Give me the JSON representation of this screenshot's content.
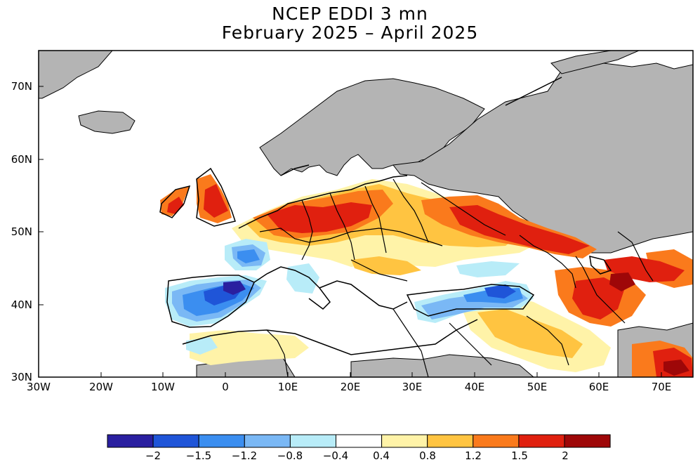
{
  "title": {
    "line1": "NCEP EDDI 3 mn",
    "line2": "February 2025 – April 2025"
  },
  "map": {
    "lon_ticks": [
      "30W",
      "20W",
      "10W",
      "0",
      "10E",
      "20E",
      "30E",
      "40E",
      "50E",
      "60E",
      "70E"
    ],
    "lat_ticks": [
      "70N",
      "60N",
      "50N",
      "40N",
      "30N"
    ],
    "missing_color": "#b4b4b4",
    "ocean_color": "#ffffff"
  },
  "colorbar": {
    "labels": [
      "−2",
      "−1.5",
      "−1.2",
      "−0.8",
      "−0.4",
      "0.4",
      "0.8",
      "1.2",
      "1.5",
      "2"
    ],
    "colors": [
      "#2a1fa0",
      "#1f55d8",
      "#3b8ef0",
      "#7ab8f5",
      "#b8ecf8",
      "#ffffff",
      "#fff3a8",
      "#ffc441",
      "#fa7a1c",
      "#e0200f",
      "#9e0708"
    ]
  }
}
